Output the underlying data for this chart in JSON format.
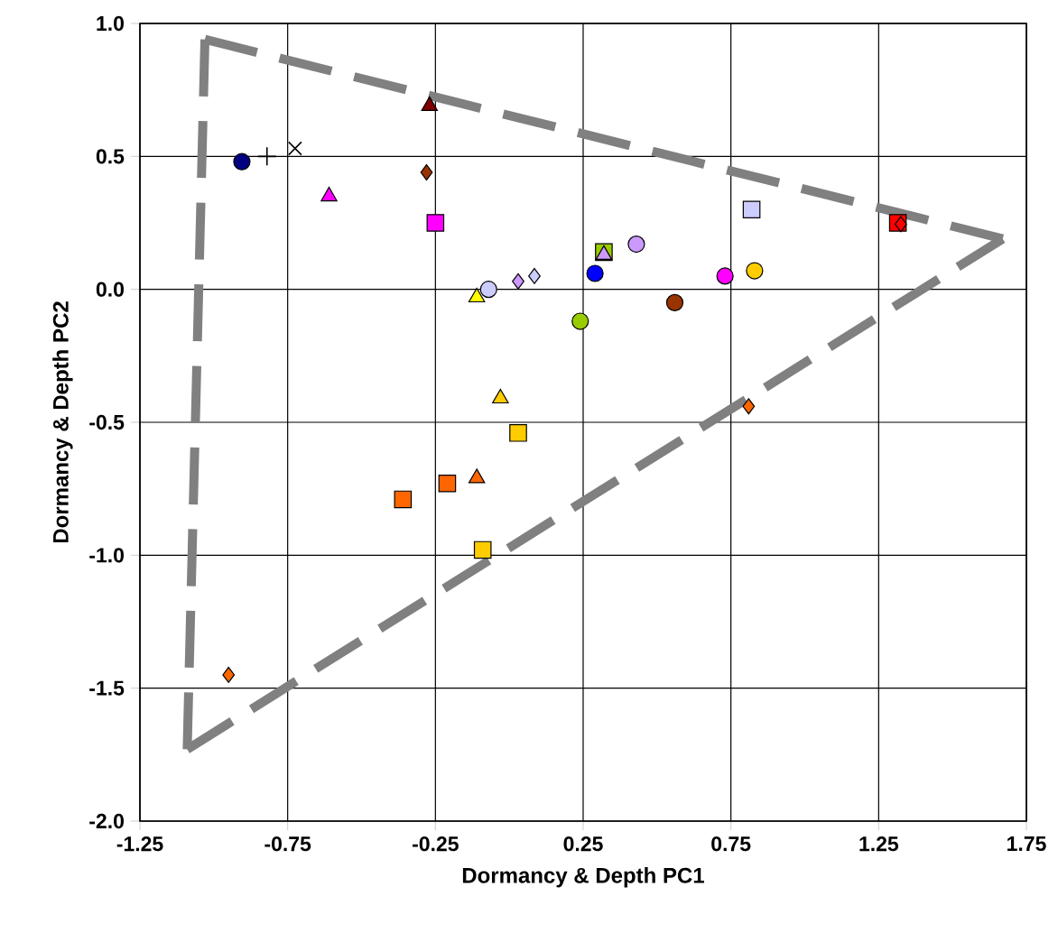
{
  "chart_data": {
    "type": "scatter",
    "xlabel": "Dormancy & Depth PC1",
    "ylabel": "Dormancy & Depth PC2",
    "xlim": [
      -1.25,
      1.75
    ],
    "ylim": [
      -2,
      1
    ],
    "xticks": [
      -1.25,
      -0.75,
      -0.25,
      0.25,
      0.75,
      1.25,
      1.75
    ],
    "yticks": [
      {
        "value": -2,
        "label": "-2.0"
      },
      {
        "value": -1.5,
        "label": "-1.5"
      },
      {
        "value": -1,
        "label": "-1.0"
      },
      {
        "value": -0.5,
        "label": "-0.5"
      },
      {
        "value": 0,
        "label": "0.0"
      },
      {
        "value": 0.5,
        "label": "0.5"
      },
      {
        "value": 1,
        "label": "1.0"
      }
    ],
    "grid": true,
    "legend": false,
    "series": [
      {
        "color": "#000080",
        "marker": "circle",
        "x": [
          -0.905
        ],
        "values": [
          0.48
        ]
      },
      {
        "color": "#000000",
        "marker": "plus",
        "x": [
          -0.82
        ],
        "values": [
          0.5
        ]
      },
      {
        "color": "#000000",
        "marker": "cross",
        "x": [
          -0.725
        ],
        "values": [
          0.53
        ]
      },
      {
        "color": "#ff00ff",
        "marker": "triangle",
        "x": [
          -0.61
        ],
        "values": [
          0.35
        ]
      },
      {
        "color": "#800000",
        "marker": "triangle",
        "x": [
          -0.27
        ],
        "values": [
          0.69
        ]
      },
      {
        "color": "#993300",
        "marker": "diamond",
        "x": [
          -0.28
        ],
        "values": [
          0.44
        ]
      },
      {
        "color": "#ff00ff",
        "marker": "square",
        "x": [
          -0.25
        ],
        "values": [
          0.25
        ]
      },
      {
        "color": "#ccccff",
        "marker": "circle",
        "x": [
          -0.07
        ],
        "values": [
          0.0
        ]
      },
      {
        "color": "#cc99ff",
        "marker": "diamond",
        "x": [
          0.03
        ],
        "values": [
          0.03
        ]
      },
      {
        "color": "#ccccff",
        "marker": "diamond",
        "x": [
          0.085
        ],
        "values": [
          0.05
        ]
      },
      {
        "color": "#ffff00",
        "marker": "triangle",
        "x": [
          -0.11
        ],
        "values": [
          -0.03
        ]
      },
      {
        "color": "#ffcc00",
        "marker": "triangle",
        "x": [
          -0.03
        ],
        "values": [
          -0.41
        ]
      },
      {
        "color": "#ffcc00",
        "marker": "square",
        "x": [
          0.03
        ],
        "values": [
          -0.54
        ]
      },
      {
        "color": "#ff6600",
        "marker": "triangle",
        "x": [
          -0.11
        ],
        "values": [
          -0.71
        ]
      },
      {
        "color": "#ff6600",
        "marker": "square",
        "x": [
          -0.21
        ],
        "values": [
          -0.73
        ]
      },
      {
        "color": "#ff6600",
        "marker": "square",
        "x": [
          -0.36
        ],
        "values": [
          -0.79
        ]
      },
      {
        "color": "#ffcc00",
        "marker": "square",
        "x": [
          -0.09
        ],
        "values": [
          -0.98
        ]
      },
      {
        "color": "#ff6600",
        "marker": "diamond",
        "x": [
          -0.95
        ],
        "values": [
          -1.45
        ]
      },
      {
        "color": "#99cc00",
        "marker": "circle",
        "x": [
          0.24
        ],
        "values": [
          -0.12
        ]
      },
      {
        "color": "#0000ff",
        "marker": "circle",
        "x": [
          0.29
        ],
        "values": [
          0.06
        ]
      },
      {
        "color": "#99cc00",
        "marker": "square",
        "x": [
          0.32
        ],
        "values": [
          0.14
        ]
      },
      {
        "color": "#cc99ff",
        "marker": "triangle",
        "x": [
          0.32
        ],
        "values": [
          0.13
        ]
      },
      {
        "color": "#cc99ff",
        "marker": "circle",
        "x": [
          0.43
        ],
        "values": [
          0.17
        ]
      },
      {
        "color": "#993300",
        "marker": "circle",
        "x": [
          0.56
        ],
        "values": [
          -0.05
        ]
      },
      {
        "color": "#ff00ff",
        "marker": "circle",
        "x": [
          0.73
        ],
        "values": [
          0.05
        ]
      },
      {
        "color": "#ffcc00",
        "marker": "circle",
        "x": [
          0.83
        ],
        "values": [
          0.07
        ]
      },
      {
        "color": "#ccccff",
        "marker": "square",
        "x": [
          0.82
        ],
        "values": [
          0.3
        ]
      },
      {
        "color": "#ff6600",
        "marker": "diamond",
        "x": [
          0.81
        ],
        "values": [
          -0.44
        ]
      },
      {
        "color": "#ff0000",
        "marker": "square",
        "x": [
          1.315
        ],
        "values": [
          0.25
        ]
      },
      {
        "color": "#ff0000",
        "marker": "diamond",
        "x": [
          1.325
        ],
        "values": [
          0.245
        ]
      },
      {
        "type": "line",
        "color": "#808080",
        "marker": "none",
        "line_style": "dashed",
        "x": [
          -1.03,
          1.67
        ],
        "values": [
          0.94,
          0.19
        ]
      },
      {
        "type": "line",
        "color": "#808080",
        "marker": "none",
        "line_style": "dashed",
        "x": [
          1.67,
          -1.09
        ],
        "values": [
          0.19,
          -1.73
        ]
      },
      {
        "type": "line",
        "color": "#808080",
        "marker": "none",
        "line_style": "dashed",
        "x": [
          -1.09,
          -1.03
        ],
        "values": [
          -1.73,
          0.94
        ]
      }
    ]
  }
}
